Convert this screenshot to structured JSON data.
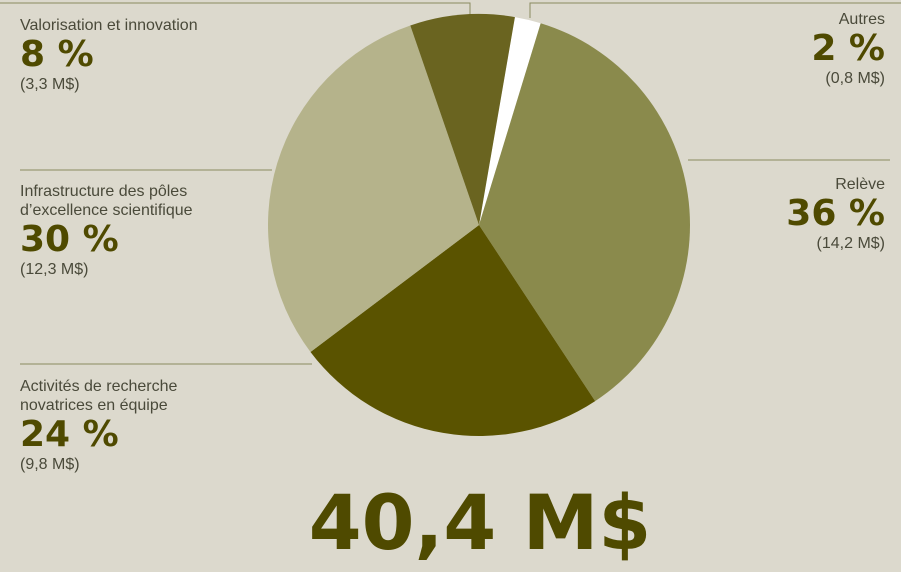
{
  "chart_data": {
    "type": "pie",
    "categories": [
      "Autres",
      "Relève",
      "Activités de recherche\nnovatrices en équipe",
      "Infrastructure des pôles\nd’excellence scientifique",
      "Valorisation et innovation"
    ],
    "values": [
      2,
      36,
      24,
      30,
      8
    ],
    "value_labels": [
      "2 %",
      "36 %",
      "24 %",
      "30 %",
      "8 %"
    ],
    "amount_labels": [
      "(0,8 M$)",
      "(14,2 M$)",
      "(9,8 M$)",
      "(12,3 M$)",
      "(3,3 M$)"
    ],
    "colors": [
      "#ffffff",
      "#8a8a4c",
      "#5a5300",
      "#b5b38b",
      "#6a6420"
    ],
    "total": "40,4 M$"
  }
}
